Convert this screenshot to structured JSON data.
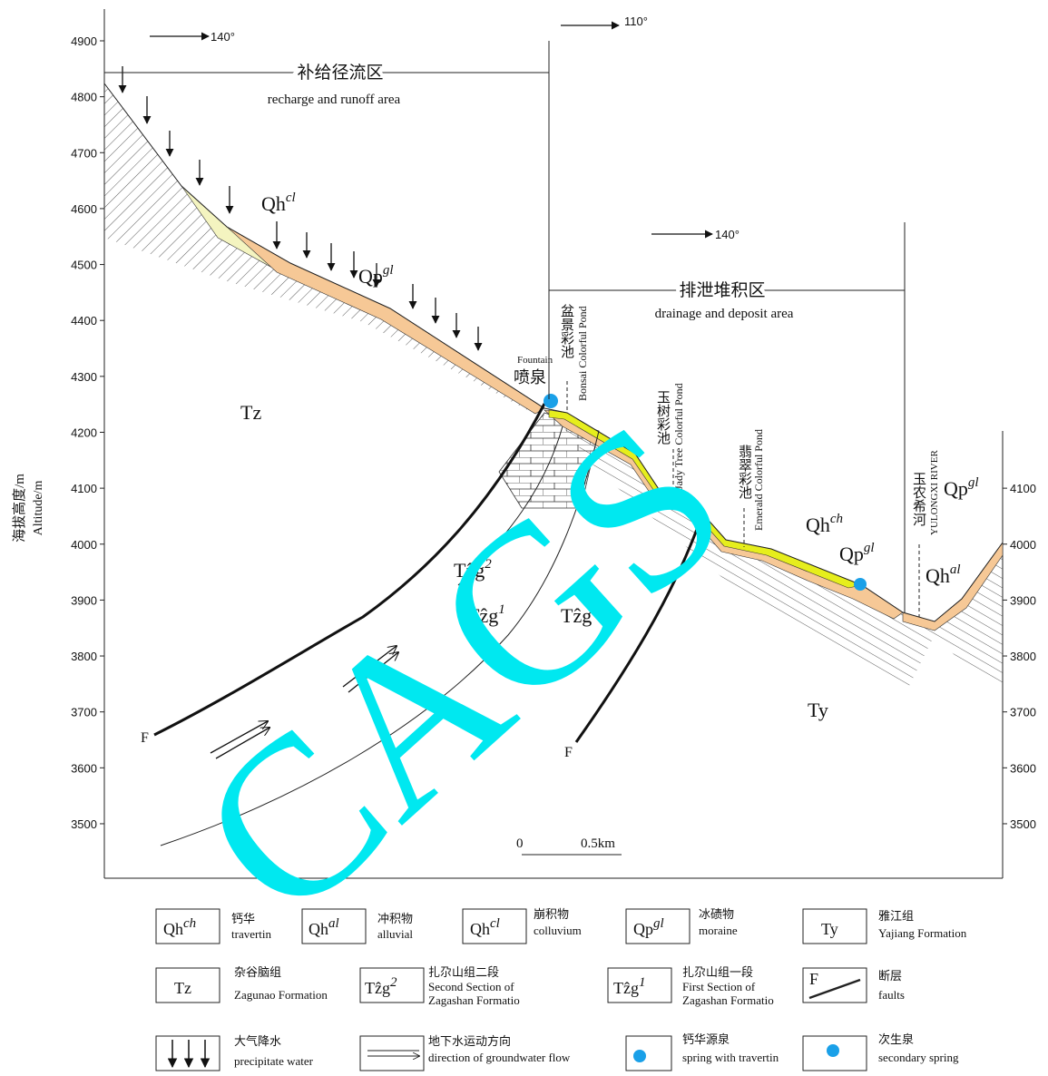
{
  "axes": {
    "left": {
      "title_cn": "海拔高度/m",
      "title_en": "Altitude/m",
      "ticks": [
        3500,
        3600,
        3700,
        3800,
        3900,
        4000,
        4100,
        4200,
        4300,
        4400,
        4500,
        4600,
        4700,
        4800,
        4900
      ]
    },
    "right": {
      "ticks": [
        3500,
        3600,
        3700,
        3800,
        3900,
        4000,
        4100
      ]
    }
  },
  "directions": [
    "140°",
    "110°",
    "140°"
  ],
  "zones": [
    {
      "cn": "补给径流区",
      "en": "recharge and runoff   area"
    },
    {
      "cn": "排泄堆积区",
      "en": "drainage and deposit area"
    }
  ],
  "features": [
    {
      "en": "Fountain",
      "cn": "喷泉"
    },
    {
      "cn": "盆景彩池",
      "en": "Bonsai Colorful Pond"
    },
    {
      "cn": "玉树彩池",
      "en": "Jady Tree Colorful Pond"
    },
    {
      "cn": "翡翠彩池",
      "en": "Emerald Colorful Pond"
    },
    {
      "cn": "玉农希河",
      "en": "YULONGXI RIVER"
    }
  ],
  "units": [
    {
      "base": "Qh",
      "sup": "cl"
    },
    {
      "base": "Qp",
      "sup": "gl"
    },
    {
      "base": "Tz"
    },
    {
      "base": "Tẑg",
      "sup": "2"
    },
    {
      "base": "Tẑg",
      "sup": "1"
    },
    {
      "base": "Tẑg",
      "sup": "1"
    },
    {
      "base": "Qh",
      "sup": "ch"
    },
    {
      "base": "Qp",
      "sup": "gl"
    },
    {
      "base": "Qh",
      "sup": "al"
    },
    {
      "base": "Qp",
      "sup": "gl"
    },
    {
      "base": "Ty"
    },
    {
      "base": "F"
    },
    {
      "base": "F"
    }
  ],
  "scale": [
    "0",
    "0.5km"
  ],
  "legend": [
    {
      "base": "Qh",
      "sup": "ch",
      "cn": "钙华",
      "en": "travertin"
    },
    {
      "base": "Qh",
      "sup": "al",
      "cn": "冲积物",
      "en": "alluvial"
    },
    {
      "base": "Qh",
      "sup": "cl",
      "cn": "崩积物",
      "en": "colluvium"
    },
    {
      "base": "Qp",
      "sup": "gl",
      "cn": "冰碛物",
      "en": "moraine"
    },
    {
      "base": "Ty",
      "cn": "雅江组",
      "en": "Yajiang Formation"
    },
    {
      "base": "Tz",
      "cn": "杂谷脑组",
      "en": "Zagunao Formation"
    },
    {
      "base": "Tẑg",
      "sup": "2",
      "cn": "扎尕山组二段",
      "en": "Second Section of",
      "en2": "Zagashan Formatio"
    },
    {
      "base": "Tẑg",
      "sup": "1",
      "cn": "扎尕山组一段",
      "en": "First Section of",
      "en2": "Zagashan Formatio"
    },
    {
      "base": "F",
      "cn": "断层",
      "en": "faults"
    },
    {
      "cn": "大气降水",
      "en": "precipitate water"
    },
    {
      "cn": "地下水运动方向",
      "en": "direction of groundwater flow"
    },
    {
      "cn": "钙华源泉",
      "en": "spring with travertin"
    },
    {
      "cn": "次生泉",
      "en": "secondary spring"
    }
  ],
  "watermark": "CAGS"
}
